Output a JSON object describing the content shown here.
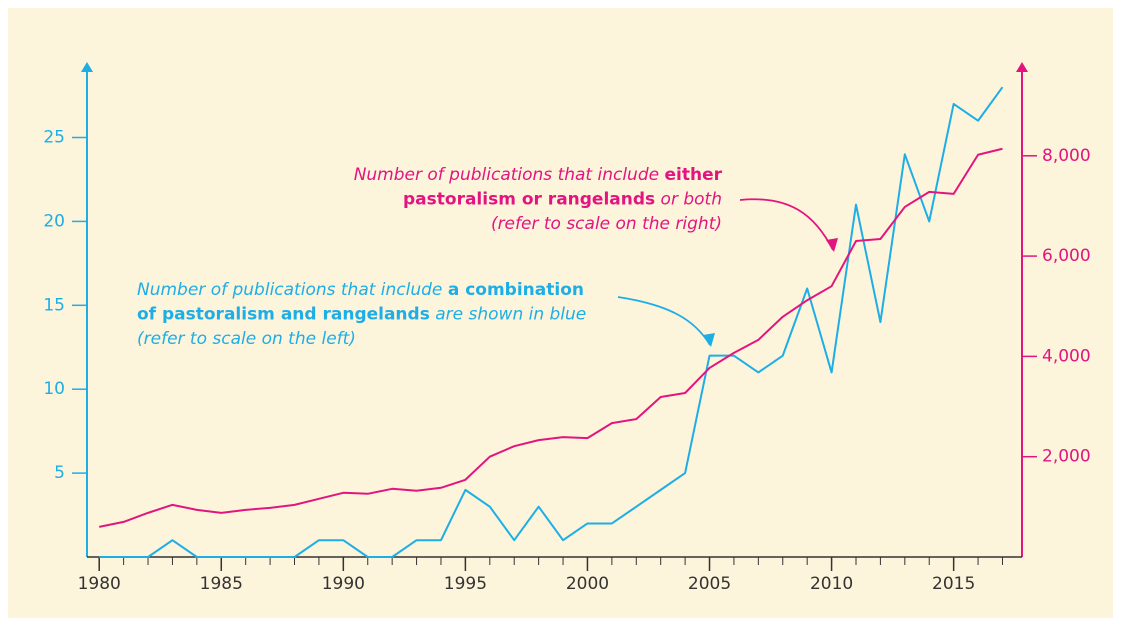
{
  "chart_data": {
    "type": "line",
    "x": [
      1980,
      1981,
      1982,
      1983,
      1984,
      1985,
      1986,
      1987,
      1988,
      1989,
      1990,
      1991,
      1992,
      1993,
      1994,
      1995,
      1996,
      1997,
      1998,
      1999,
      2000,
      2001,
      2002,
      2003,
      2004,
      2005,
      2006,
      2007,
      2008,
      2009,
      2010,
      2011,
      2012,
      2013,
      2014,
      2015,
      2016,
      2017
    ],
    "series": [
      {
        "color": "#1eaee6",
        "axis": "y",
        "values": [
          0,
          0,
          0,
          1,
          0,
          0,
          0,
          0,
          0,
          1,
          1,
          0,
          0,
          1,
          1,
          4,
          3,
          1,
          3,
          1,
          2,
          2,
          3,
          4,
          5,
          12,
          12,
          11,
          12,
          16,
          11,
          21,
          14,
          24,
          20,
          27,
          26,
          28
        ]
      },
      {
        "color": "#e2157f",
        "axis": "y2",
        "values": [
          600,
          700,
          880,
          1040,
          940,
          880,
          940,
          980,
          1040,
          1160,
          1280,
          1260,
          1360,
          1320,
          1380,
          1540,
          2000,
          2210,
          2330,
          2390,
          2370,
          2670,
          2750,
          3190,
          3270,
          3770,
          4070,
          4330,
          4790,
          5120,
          5400,
          6300,
          6340,
          6980,
          7280,
          7240,
          8020,
          8140
        ]
      }
    ],
    "xlim": [
      1979.5,
      2017.8
    ],
    "xticks": [
      1980,
      1985,
      1990,
      1995,
      2000,
      2005,
      2010,
      2015
    ],
    "ylim": [
      0,
      29.5
    ],
    "yticks": [
      5,
      10,
      15,
      20,
      25
    ],
    "y2lim": [
      0,
      9870
    ],
    "y2ticks": [
      {
        "value": 2000,
        "label": "2,000"
      },
      {
        "value": 4000,
        "label": "4,000"
      },
      {
        "value": 6000,
        "label": "6,000"
      },
      {
        "value": 8000,
        "label": "8,000"
      }
    ],
    "annotations": [
      {
        "color": "#e2157f",
        "lines": [
          [
            {
              "text": "Number of publications that include ",
              "bold": false
            },
            {
              "text": "either",
              "bold": true
            }
          ],
          [
            {
              "text": "pastoralism or rangelands",
              "bold": true
            },
            {
              "text": " or both",
              "bold": false
            }
          ],
          [
            {
              "text": "(refer to scale on the right)",
              "bold": false
            }
          ]
        ]
      },
      {
        "color": "#1eaee6",
        "lines": [
          [
            {
              "text": "Number of publications that include ",
              "bold": false
            },
            {
              "text": "a combination",
              "bold": true
            }
          ],
          [
            {
              "text": "of pastoralism and rangelands",
              "bold": true
            },
            {
              "text": " are shown in blue",
              "bold": false
            }
          ],
          [
            {
              "text": "(refer to scale on the left)",
              "bold": false
            }
          ]
        ]
      }
    ]
  }
}
